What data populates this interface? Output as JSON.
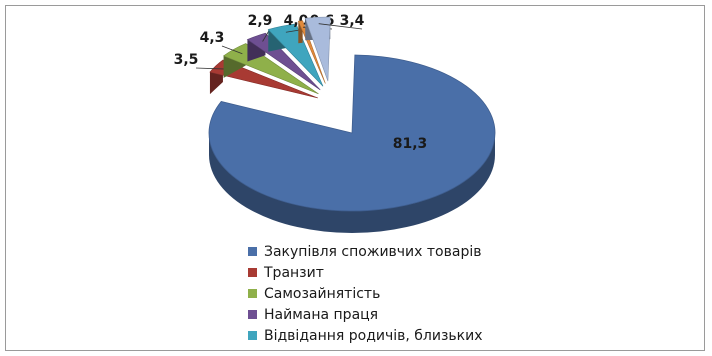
{
  "chart_data": {
    "type": "pie",
    "style": "3d-exploded",
    "title": "",
    "legend_position": "bottom",
    "slices": [
      {
        "name": "Закупівля споживчих товарів",
        "value": 81.3,
        "label": "81,3",
        "color": "#4a6fa8"
      },
      {
        "name": "Транзит",
        "value": 3.5,
        "label": "3,5",
        "color": "#a83a33"
      },
      {
        "name": "Самозайнятість",
        "value": 4.3,
        "label": "4,3",
        "color": "#8fb04a"
      },
      {
        "name": "Наймана праця",
        "value": 2.9,
        "label": "2,9",
        "color": "#6e4f92"
      },
      {
        "name": "Відвідання родичів, близьких",
        "value": 4.0,
        "label": "4,0",
        "color": "#3fa5be"
      },
      {
        "name": "",
        "value": 0.6,
        "label": "0,6",
        "color": "#e08a3c"
      },
      {
        "name": "",
        "value": 3.4,
        "label": "3,4",
        "color": "#a9bbdc"
      }
    ]
  }
}
